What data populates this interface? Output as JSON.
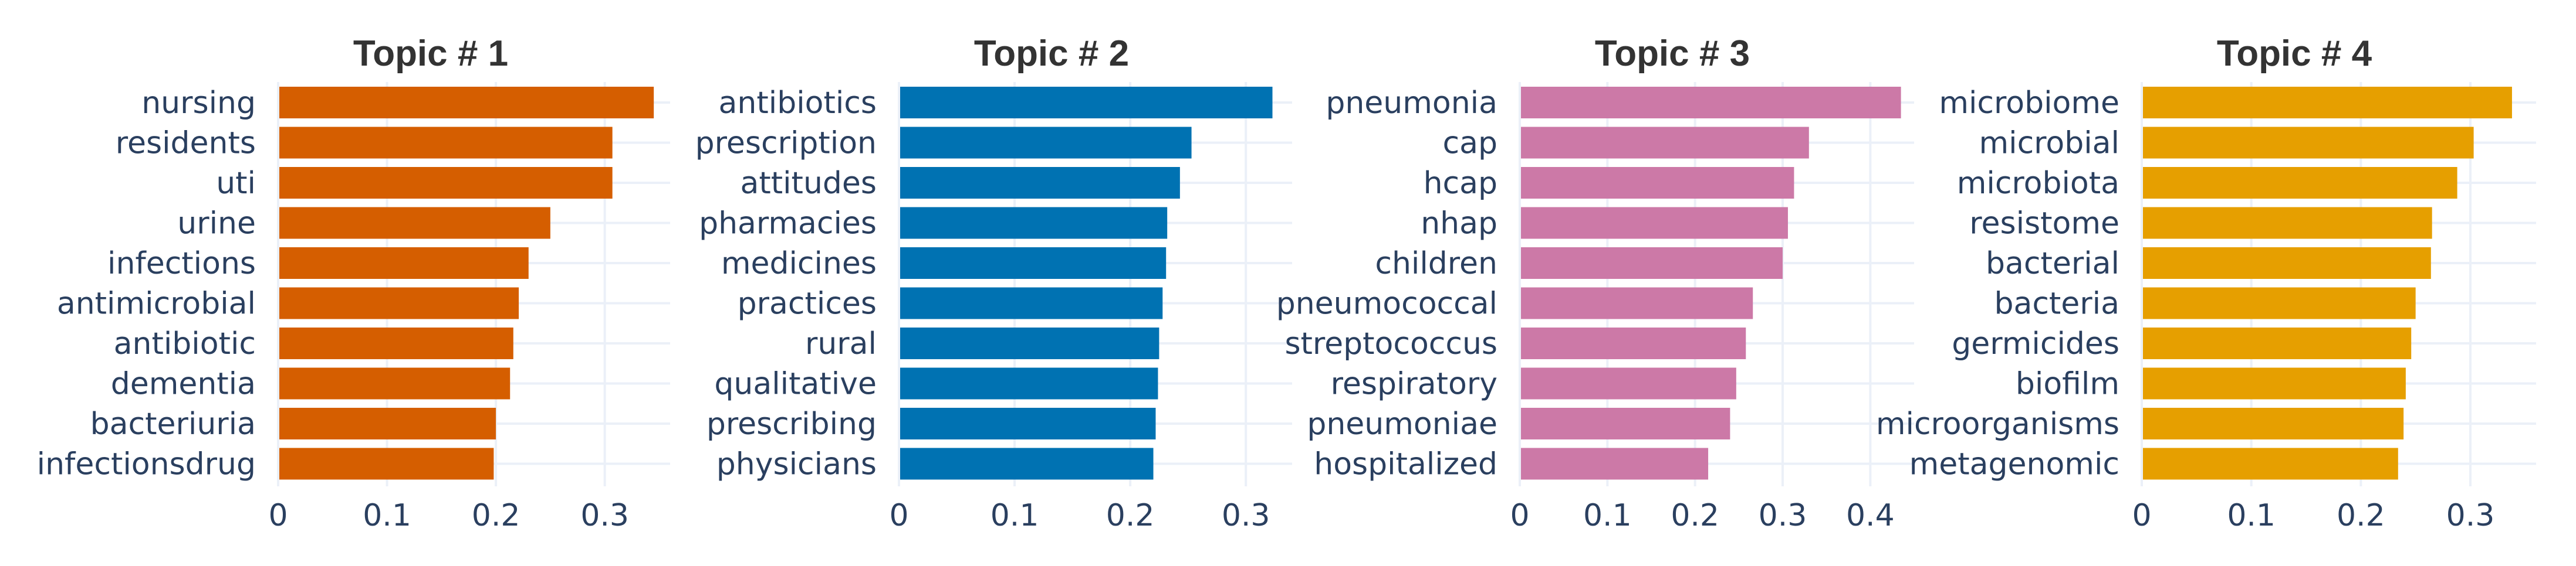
{
  "chart_data": [
    {
      "type": "bar",
      "orientation": "horizontal",
      "title": "Topic # 1",
      "color": "#D55E00",
      "categories": [
        "nursing",
        "residents",
        "uti",
        "urine",
        "infections",
        "antimicrobial",
        "antibiotic",
        "dementia",
        "bacteriuria",
        "infectionsdrug"
      ],
      "values": [
        0.345,
        0.307,
        0.307,
        0.25,
        0.23,
        0.221,
        0.216,
        0.213,
        0.2,
        0.198
      ],
      "xlim": [
        0,
        0.36
      ],
      "xticks": [
        0,
        0.1,
        0.2,
        0.3
      ],
      "xtick_labels": [
        "0",
        "0.1",
        "0.2",
        "0.3"
      ],
      "grid": true
    },
    {
      "type": "bar",
      "orientation": "horizontal",
      "title": "Topic # 2",
      "color": "#0072B2",
      "categories": [
        "antibiotics",
        "prescription",
        "attitudes",
        "pharmacies",
        "medicines",
        "practices",
        "rural",
        "qualitative",
        "prescribing",
        "physicians"
      ],
      "values": [
        0.323,
        0.253,
        0.243,
        0.232,
        0.231,
        0.228,
        0.225,
        0.224,
        0.222,
        0.22
      ],
      "xlim": [
        0,
        0.34
      ],
      "xticks": [
        0,
        0.1,
        0.2,
        0.3
      ],
      "xtick_labels": [
        "0",
        "0.1",
        "0.2",
        "0.3"
      ],
      "grid": true
    },
    {
      "type": "bar",
      "orientation": "horizontal",
      "title": "Topic # 3",
      "color": "#CC79A7",
      "categories": [
        "pneumonia",
        "cap",
        "hcap",
        "nhap",
        "children",
        "pneumococcal",
        "streptococcus",
        "respiratory",
        "pneumoniae",
        "hospitalized"
      ],
      "values": [
        0.435,
        0.33,
        0.313,
        0.306,
        0.3,
        0.266,
        0.258,
        0.247,
        0.24,
        0.215
      ],
      "xlim": [
        0,
        0.45
      ],
      "xticks": [
        0,
        0.1,
        0.2,
        0.3,
        0.4
      ],
      "xtick_labels": [
        "0",
        "0.1",
        "0.2",
        "0.3",
        "0.4"
      ],
      "grid": true
    },
    {
      "type": "bar",
      "orientation": "horizontal",
      "title": "Topic # 4",
      "color": "#E69F00",
      "categories": [
        "microbiome",
        "microbial",
        "microbiota",
        "resistome",
        "bacterial",
        "bacteria",
        "germicides",
        "biofilm",
        "microorganisms",
        "metagenomic"
      ],
      "values": [
        0.338,
        0.303,
        0.288,
        0.265,
        0.264,
        0.25,
        0.246,
        0.241,
        0.239,
        0.234
      ],
      "xlim": [
        0,
        0.36
      ],
      "xticks": [
        0,
        0.1,
        0.2,
        0.3
      ],
      "xtick_labels": [
        "0",
        "0.1",
        "0.2",
        "0.3"
      ],
      "grid": true
    }
  ]
}
